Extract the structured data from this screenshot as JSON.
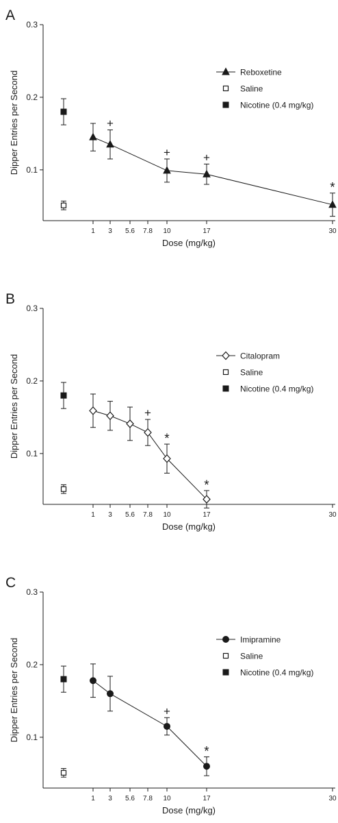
{
  "colors": {
    "ink": "#1a1a1a",
    "background": "#ffffff"
  },
  "chart_data": [
    {
      "type": "scatter",
      "panel_label": "A",
      "xlabel": "Dose (mg/kg)",
      "ylabel": "Dipper Entries per Second",
      "x_ticks": [
        "1",
        "3",
        "5.6",
        "7.8",
        "10",
        "17",
        "30"
      ],
      "y_ticks": [
        "0.1",
        "0.2",
        "0.3"
      ],
      "ylim": [
        0.03,
        0.3
      ],
      "series": [
        {
          "name": "Reboxetine",
          "marker": "filled-triangle",
          "x": [
            "1",
            "3",
            "10",
            "17",
            "30"
          ],
          "y": [
            0.145,
            0.135,
            0.099,
            0.094,
            0.052
          ],
          "err": [
            0.019,
            0.02,
            0.016,
            0.014,
            0.016
          ],
          "annotations": [
            "",
            "+",
            "+",
            "+",
            "*"
          ]
        },
        {
          "name": "Saline",
          "marker": "open-square",
          "y": 0.051,
          "err": 0.006
        },
        {
          "name": "Nicotine (0.4 mg/kg)",
          "marker": "filled-square",
          "y": 0.18,
          "err": 0.018
        }
      ]
    },
    {
      "type": "scatter",
      "panel_label": "B",
      "xlabel": "Dose (mg/kg)",
      "ylabel": "Dipper Entries per Second",
      "x_ticks": [
        "1",
        "3",
        "5.6",
        "7.8",
        "10",
        "17",
        "30"
      ],
      "y_ticks": [
        "0.1",
        "0.2",
        "0.3"
      ],
      "ylim": [
        0.03,
        0.3
      ],
      "series": [
        {
          "name": "Citalopram",
          "marker": "open-diamond",
          "x": [
            "1",
            "3",
            "5.6",
            "7.8",
            "10",
            "17"
          ],
          "y": [
            0.159,
            0.152,
            0.141,
            0.129,
            0.093,
            0.037
          ],
          "err": [
            0.023,
            0.02,
            0.023,
            0.018,
            0.02,
            0.012
          ],
          "annotations": [
            "",
            "",
            "",
            "+",
            "*",
            "*"
          ]
        },
        {
          "name": "Saline",
          "marker": "open-square",
          "y": 0.051,
          "err": 0.006
        },
        {
          "name": "Nicotine (0.4 mg/kg)",
          "marker": "filled-square",
          "y": 0.18,
          "err": 0.018
        }
      ]
    },
    {
      "type": "scatter",
      "panel_label": "C",
      "xlabel": "Dose (mg/kg)",
      "ylabel": "Dipper Entries per Second",
      "x_ticks": [
        "1",
        "3",
        "5.6",
        "7.8",
        "10",
        "17",
        "30"
      ],
      "y_ticks": [
        "0.1",
        "0.2",
        "0.3"
      ],
      "ylim": [
        0.03,
        0.3
      ],
      "series": [
        {
          "name": "Imipramine",
          "marker": "filled-circle",
          "x": [
            "1",
            "3",
            "10",
            "17"
          ],
          "y": [
            0.178,
            0.16,
            0.115,
            0.06
          ],
          "err": [
            0.023,
            0.024,
            0.012,
            0.013
          ],
          "annotations": [
            "",
            "",
            "+",
            "*"
          ]
        },
        {
          "name": "Saline",
          "marker": "open-square",
          "y": 0.051,
          "err": 0.006
        },
        {
          "name": "Nicotine (0.4 mg/kg)",
          "marker": "filled-square",
          "y": 0.18,
          "err": 0.018
        }
      ]
    }
  ]
}
